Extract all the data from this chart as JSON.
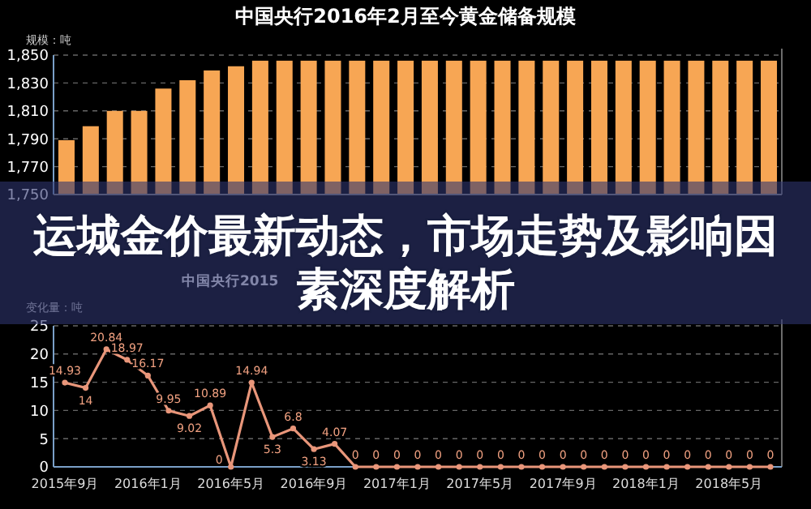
{
  "chart_data": [
    {
      "type": "bar",
      "title": "中国央行2016年2月至今黄金储备规模",
      "ylabel": "规模：吨",
      "categories": [
        null,
        null,
        null,
        null,
        null,
        null,
        null,
        null,
        null,
        null,
        null,
        null,
        null,
        null,
        null,
        null,
        null,
        null,
        null,
        null,
        null,
        null,
        null,
        null,
        null,
        null,
        null,
        null,
        null,
        null
      ],
      "values": [
        1789,
        1799,
        1810,
        1810,
        1826,
        1832,
        1839,
        1842,
        1846,
        1846,
        1846,
        1846,
        1846,
        1846,
        1846,
        1846,
        1846,
        1846,
        1846,
        1846,
        1846,
        1846,
        1846,
        1846,
        1846,
        1846,
        1846,
        1846,
        1846,
        1846
      ],
      "color": "#f7a654",
      "ylim": [
        1750,
        1850
      ],
      "yticks": [
        {
          "value": 1750,
          "label": "1,750"
        },
        {
          "value": 1770,
          "label": "1,770"
        },
        {
          "value": 1790,
          "label": "1,790"
        },
        {
          "value": 1810,
          "label": "1,810"
        },
        {
          "value": 1830,
          "label": "1,830"
        },
        {
          "value": 1850,
          "label": "1,850"
        }
      ],
      "grid": "y"
    },
    {
      "type": "line",
      "title": "中国央行2015",
      "ylabel": "变化量：吨",
      "categories": [
        "2015年9月",
        null,
        null,
        null,
        "2016年1月",
        null,
        null,
        null,
        "2016年5月",
        null,
        null,
        null,
        "2016年9月",
        null,
        null,
        null,
        "2017年1月",
        null,
        null,
        null,
        "2017年5月",
        null,
        null,
        null,
        "2017年9月",
        null,
        null,
        null,
        "2018年1月",
        null,
        null,
        null,
        "2018年5月",
        null,
        null
      ],
      "values": [
        14.93,
        14,
        20.84,
        18.97,
        16.17,
        9.95,
        9.02,
        10.89,
        0,
        14.94,
        5.3,
        6.8,
        3.13,
        4.07,
        0,
        0,
        0,
        0,
        0,
        0,
        0,
        0,
        0,
        0,
        0,
        0,
        0,
        0,
        0,
        0,
        0,
        0,
        0,
        0,
        0
      ],
      "color": "#e9967a",
      "ylim": [
        0,
        25
      ],
      "yticks": [
        0,
        5,
        10,
        15,
        20,
        25
      ],
      "grid": "y",
      "data_labels": true,
      "marker": "circle"
    },
    {
      "type": "other",
      "title": "运城金价最新动态，市场走势及影响因素深度解析"
    }
  ]
}
